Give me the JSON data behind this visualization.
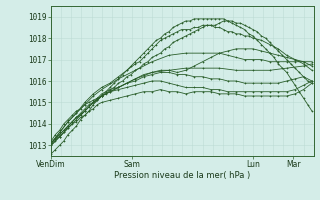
{
  "title": "",
  "xlabel": "Pression niveau de la mer( hPa )",
  "ylabel": "",
  "ylim": [
    1012.5,
    1019.5
  ],
  "yticks": [
    1013,
    1014,
    1015,
    1016,
    1017,
    1018,
    1019
  ],
  "xtick_labels": [
    "VenDim",
    "Sam",
    "Lun",
    "Mar"
  ],
  "xtick_positions": [
    0,
    96,
    240,
    288
  ],
  "bg_color": "#d4ede8",
  "grid_color_major": "#b8d8d0",
  "grid_color_minor": "#c8e4de",
  "line_color": "#2a5e2a",
  "total_points": 312,
  "series": [
    {
      "x": [
        0,
        5,
        10,
        15,
        20,
        25,
        30,
        35,
        40,
        45,
        50,
        55,
        60,
        70,
        80,
        90,
        100,
        110,
        120,
        130,
        140,
        150,
        160,
        170,
        180,
        190,
        200,
        210,
        220,
        230,
        240,
        250,
        260,
        270,
        280,
        290,
        300,
        310
      ],
      "y": [
        1013.1,
        1013.3,
        1013.4,
        1013.6,
        1013.8,
        1014.0,
        1014.1,
        1014.3,
        1014.4,
        1014.6,
        1014.7,
        1014.9,
        1015.0,
        1015.1,
        1015.2,
        1015.3,
        1015.4,
        1015.5,
        1015.5,
        1015.6,
        1015.5,
        1015.5,
        1015.4,
        1015.5,
        1015.5,
        1015.5,
        1015.4,
        1015.4,
        1015.4,
        1015.3,
        1015.3,
        1015.3,
        1015.3,
        1015.3,
        1015.3,
        1015.4,
        1015.6,
        1015.9
      ]
    },
    {
      "x": [
        0,
        5,
        10,
        15,
        20,
        25,
        30,
        35,
        40,
        45,
        50,
        55,
        60,
        70,
        80,
        90,
        100,
        110,
        120,
        130,
        140,
        150,
        160,
        170,
        180,
        190,
        200,
        210,
        220,
        230,
        240,
        250,
        260,
        270,
        280,
        290,
        300,
        310
      ],
      "y": [
        1013.2,
        1013.5,
        1013.7,
        1014.0,
        1014.2,
        1014.4,
        1014.6,
        1014.7,
        1014.9,
        1015.0,
        1015.1,
        1015.2,
        1015.3,
        1015.5,
        1015.6,
        1015.7,
        1015.8,
        1015.9,
        1016.0,
        1016.0,
        1015.9,
        1015.8,
        1015.7,
        1015.7,
        1015.7,
        1015.6,
        1015.6,
        1015.5,
        1015.5,
        1015.5,
        1015.5,
        1015.5,
        1015.5,
        1015.5,
        1015.5,
        1015.6,
        1015.8,
        1016.0
      ]
    },
    {
      "x": [
        0,
        5,
        10,
        15,
        20,
        25,
        30,
        35,
        40,
        45,
        50,
        55,
        60,
        70,
        80,
        90,
        100,
        110,
        120,
        130,
        140,
        150,
        160,
        170,
        180,
        190,
        200,
        210,
        220,
        230,
        240,
        250,
        260,
        270,
        280,
        290,
        300,
        310
      ],
      "y": [
        1013.0,
        1013.2,
        1013.4,
        1013.6,
        1013.9,
        1014.1,
        1014.3,
        1014.5,
        1014.7,
        1014.9,
        1015.0,
        1015.2,
        1015.4,
        1015.6,
        1015.7,
        1015.9,
        1016.0,
        1016.2,
        1016.3,
        1016.4,
        1016.4,
        1016.3,
        1016.3,
        1016.2,
        1016.2,
        1016.1,
        1016.1,
        1016.0,
        1016.0,
        1015.9,
        1015.9,
        1015.9,
        1015.9,
        1015.9,
        1016.0,
        1016.1,
        1016.2,
        1016.0
      ]
    },
    {
      "x": [
        0,
        10,
        20,
        30,
        40,
        50,
        60,
        80,
        100,
        120,
        140,
        160,
        180,
        200,
        220,
        240,
        260,
        280,
        300,
        310
      ],
      "y": [
        1013.1,
        1013.5,
        1013.9,
        1014.3,
        1014.6,
        1015.0,
        1015.3,
        1015.7,
        1016.1,
        1016.4,
        1016.5,
        1016.6,
        1016.6,
        1016.6,
        1016.5,
        1016.5,
        1016.5,
        1016.6,
        1016.7,
        1016.8
      ]
    },
    {
      "x": [
        0,
        10,
        20,
        30,
        40,
        50,
        60,
        80,
        100,
        120,
        140,
        160,
        180,
        200,
        210,
        220,
        230,
        240,
        250,
        260,
        270,
        280,
        290,
        300,
        310
      ],
      "y": [
        1013.1,
        1013.6,
        1014.1,
        1014.5,
        1014.9,
        1015.3,
        1015.6,
        1016.1,
        1016.5,
        1016.9,
        1017.2,
        1017.3,
        1017.3,
        1017.3,
        1017.2,
        1017.1,
        1017.0,
        1017.0,
        1017.0,
        1016.9,
        1016.9,
        1016.9,
        1016.9,
        1016.9,
        1016.9
      ]
    },
    {
      "x": [
        0,
        10,
        20,
        30,
        40,
        50,
        60,
        70,
        80,
        90,
        100,
        110,
        120,
        130,
        140,
        150,
        160,
        170,
        180,
        190,
        200,
        210,
        220,
        230,
        240,
        250,
        260,
        270,
        280,
        290,
        300,
        310
      ],
      "y": [
        1013.0,
        1013.4,
        1013.8,
        1014.2,
        1014.6,
        1015.0,
        1015.3,
        1015.5,
        1015.7,
        1015.9,
        1016.1,
        1016.3,
        1016.4,
        1016.5,
        1016.5,
        1016.4,
        1016.5,
        1016.7,
        1016.9,
        1017.1,
        1017.3,
        1017.4,
        1017.5,
        1017.5,
        1017.5,
        1017.4,
        1017.3,
        1017.2,
        1017.1,
        1017.0,
        1016.9,
        1016.7
      ]
    },
    {
      "x": [
        0,
        10,
        20,
        30,
        40,
        50,
        60,
        70,
        80,
        90,
        100,
        105,
        110,
        115,
        120,
        125,
        130,
        135,
        140,
        145,
        150,
        155,
        160,
        165,
        170,
        175,
        180,
        185,
        190,
        195,
        200,
        205,
        210,
        215,
        220,
        225,
        230,
        235,
        240,
        250,
        260,
        270,
        280,
        290,
        300,
        310
      ],
      "y": [
        1013.1,
        1013.6,
        1014.1,
        1014.5,
        1015.0,
        1015.4,
        1015.7,
        1015.9,
        1016.2,
        1016.5,
        1016.8,
        1016.9,
        1017.1,
        1017.3,
        1017.5,
        1017.7,
        1017.9,
        1018.0,
        1018.1,
        1018.2,
        1018.3,
        1018.4,
        1018.4,
        1018.4,
        1018.5,
        1018.5,
        1018.6,
        1018.6,
        1018.6,
        1018.5,
        1018.5,
        1018.4,
        1018.3,
        1018.3,
        1018.2,
        1018.2,
        1018.1,
        1018.1,
        1018.0,
        1017.9,
        1017.7,
        1017.5,
        1017.2,
        1017.0,
        1016.8,
        1016.5
      ]
    },
    {
      "x": [
        0,
        5,
        10,
        15,
        20,
        25,
        30,
        35,
        40,
        45,
        50,
        55,
        60,
        65,
        70,
        75,
        80,
        85,
        90,
        95,
        100,
        105,
        110,
        115,
        120,
        125,
        130,
        135,
        140,
        145,
        150,
        155,
        160,
        165,
        170,
        175,
        180,
        185,
        190,
        195,
        200,
        205,
        210,
        215,
        220,
        225,
        230,
        235,
        240,
        245,
        250,
        255,
        260,
        265,
        270,
        275,
        280,
        285,
        290,
        295,
        300,
        305,
        310
      ],
      "y": [
        1013.1,
        1013.3,
        1013.5,
        1013.7,
        1013.9,
        1014.1,
        1014.3,
        1014.4,
        1014.6,
        1014.8,
        1015.0,
        1015.1,
        1015.3,
        1015.4,
        1015.6,
        1015.7,
        1015.9,
        1016.0,
        1016.2,
        1016.3,
        1016.5,
        1016.6,
        1016.8,
        1016.9,
        1017.1,
        1017.2,
        1017.3,
        1017.5,
        1017.6,
        1017.8,
        1017.9,
        1018.0,
        1018.1,
        1018.2,
        1018.3,
        1018.4,
        1018.5,
        1018.6,
        1018.6,
        1018.6,
        1018.7,
        1018.8,
        1018.8,
        1018.8,
        1018.7,
        1018.7,
        1018.6,
        1018.5,
        1018.4,
        1018.3,
        1018.1,
        1018.0,
        1017.8,
        1017.6,
        1017.4,
        1017.2,
        1017.0,
        1016.8,
        1016.6,
        1016.4,
        1016.2,
        1016.0,
        1015.9
      ]
    },
    {
      "x": [
        0,
        5,
        10,
        15,
        20,
        25,
        30,
        35,
        40,
        45,
        50,
        55,
        60,
        65,
        70,
        75,
        80,
        85,
        90,
        95,
        100,
        105,
        110,
        115,
        120,
        125,
        130,
        135,
        140,
        145,
        150,
        155,
        160,
        165,
        170,
        175,
        180,
        185,
        190,
        195,
        200,
        205,
        210,
        215,
        220,
        225,
        230,
        235,
        240,
        245,
        250,
        255,
        260,
        265,
        270,
        275,
        280,
        285,
        290,
        295,
        300,
        305,
        310
      ],
      "y": [
        1012.6,
        1012.8,
        1013.0,
        1013.2,
        1013.5,
        1013.7,
        1013.9,
        1014.2,
        1014.4,
        1014.6,
        1014.9,
        1015.1,
        1015.3,
        1015.5,
        1015.7,
        1015.9,
        1016.1,
        1016.3,
        1016.5,
        1016.7,
        1016.9,
        1017.1,
        1017.3,
        1017.5,
        1017.7,
        1017.9,
        1018.0,
        1018.2,
        1018.3,
        1018.5,
        1018.6,
        1018.7,
        1018.8,
        1018.8,
        1018.9,
        1018.9,
        1018.9,
        1018.9,
        1018.9,
        1018.9,
        1018.9,
        1018.9,
        1018.8,
        1018.7,
        1018.6,
        1018.5,
        1018.4,
        1018.2,
        1018.1,
        1017.9,
        1017.7,
        1017.5,
        1017.3,
        1017.1,
        1016.8,
        1016.6,
        1016.4,
        1016.1,
        1015.8,
        1015.5,
        1015.2,
        1014.9,
        1014.6
      ]
    }
  ]
}
